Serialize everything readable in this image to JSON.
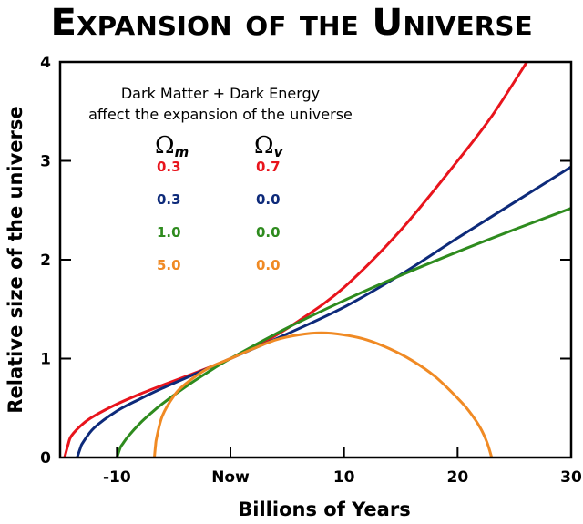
{
  "chart_data": {
    "type": "line",
    "title": "Expansion of the Universe",
    "xlabel": "Billions of Years",
    "ylabel": "Relative size of the universe",
    "xlim": [
      -15,
      30
    ],
    "ylim": [
      0,
      4
    ],
    "x_ticks": [
      {
        "value": -10,
        "label": "-10"
      },
      {
        "value": 0,
        "label": "Now"
      },
      {
        "value": 10,
        "label": "10"
      },
      {
        "value": 20,
        "label": "20"
      },
      {
        "value": 30,
        "label": "30"
      }
    ],
    "y_ticks": [
      {
        "value": 0,
        "label": "0"
      },
      {
        "value": 1,
        "label": "1"
      },
      {
        "value": 2,
        "label": "2"
      },
      {
        "value": 3,
        "label": "3"
      },
      {
        "value": 4,
        "label": "4"
      }
    ],
    "grid": false,
    "annotation": {
      "line1": "Dark Matter + Dark Energy",
      "line2": "affect the expansion of the universe",
      "col1_symbol": "Ω",
      "col1_sub": "m",
      "col2_symbol": "Ω",
      "col2_sub": "v"
    },
    "series": [
      {
        "omega_m": "0.3",
        "omega_v": "0.7",
        "color": "#e8141c",
        "x": [
          -14.6,
          -14.3,
          -14,
          -13,
          -12,
          -10,
          -8,
          -6,
          -3,
          0,
          3,
          6,
          10,
          15,
          20,
          23,
          26.1
        ],
        "y": [
          0,
          0.13,
          0.22,
          0.34,
          0.42,
          0.54,
          0.64,
          0.73,
          0.86,
          1,
          1.17,
          1.38,
          1.72,
          2.3,
          3.0,
          3.45,
          4
        ]
      },
      {
        "omega_m": "0.3",
        "omega_v": "0.0",
        "color": "#0d2a7a",
        "x": [
          -13.5,
          -13.2,
          -13,
          -12,
          -10,
          -8,
          -6,
          -3,
          0,
          5,
          10,
          15,
          20,
          25,
          30
        ],
        "y": [
          0,
          0.1,
          0.15,
          0.3,
          0.47,
          0.59,
          0.7,
          0.85,
          1,
          1.25,
          1.52,
          1.85,
          2.22,
          2.58,
          2.94
        ]
      },
      {
        "omega_m": "1.0",
        "omega_v": "0.0",
        "color": "#2e8b1e",
        "x": [
          -10,
          -9.7,
          -9.5,
          -9,
          -8,
          -7,
          -6,
          -4,
          -2,
          0,
          5,
          10,
          15,
          20,
          25,
          30
        ],
        "y": [
          0,
          0.1,
          0.136,
          0.215,
          0.342,
          0.448,
          0.543,
          0.711,
          0.862,
          1,
          1.31,
          1.587,
          1.842,
          2.08,
          2.305,
          2.52
        ]
      },
      {
        "omega_m": "5.0",
        "omega_v": "0.0",
        "color": "#f08a24",
        "x": [
          -6.7,
          -6.6,
          -6.5,
          -6,
          -5,
          -4,
          -2,
          0,
          2,
          4,
          6,
          8,
          10,
          12,
          14,
          16,
          18,
          20,
          21,
          22,
          22.6,
          23
        ],
        "y": [
          0,
          0.12,
          0.2,
          0.42,
          0.62,
          0.74,
          0.9,
          1.0,
          1.1,
          1.19,
          1.24,
          1.26,
          1.24,
          1.19,
          1.1,
          0.98,
          0.82,
          0.6,
          0.47,
          0.3,
          0.15,
          0
        ]
      }
    ]
  }
}
